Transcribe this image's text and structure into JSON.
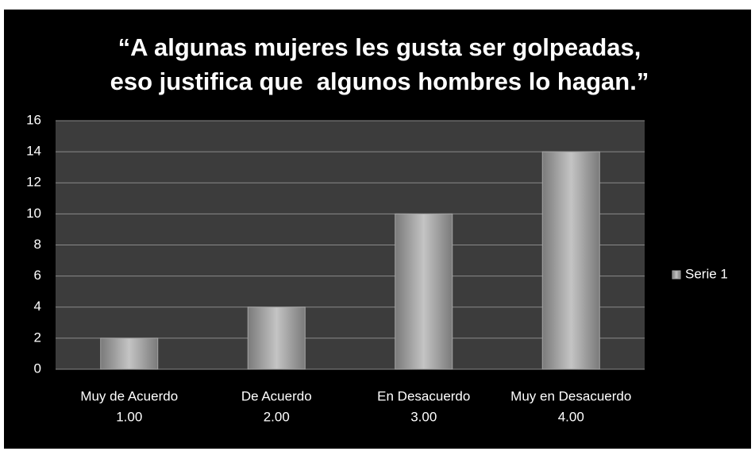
{
  "chart_data": {
    "type": "bar",
    "title": [
      "“A algunas mujeres les gusta ser golpeadas,",
      "eso justifica que  algunos hombres lo hagan.”"
    ],
    "categories": [
      [
        "Muy de Acuerdo",
        "1.00"
      ],
      [
        "De Acuerdo",
        "2.00"
      ],
      [
        "En Desacuerdo",
        "3.00"
      ],
      [
        "Muy en Desacuerdo",
        "4.00"
      ]
    ],
    "series": [
      {
        "name": "Serie 1",
        "color": "#a6a6a6",
        "values": [
          2,
          4,
          10,
          14
        ]
      }
    ],
    "ylim": [
      0,
      16
    ],
    "yticks": [
      0,
      2,
      4,
      6,
      8,
      10,
      12,
      14,
      16
    ],
    "grid": true,
    "legend": "right"
  }
}
